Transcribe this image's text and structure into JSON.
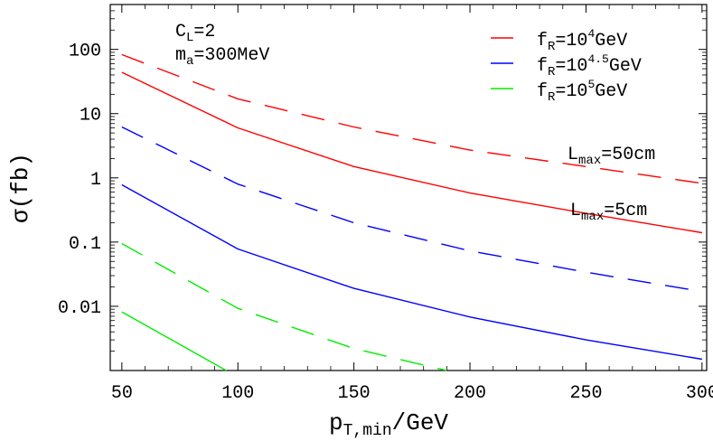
{
  "chart_data": {
    "type": "line",
    "title": "",
    "xlabel_main": "p",
    "xlabel_sub": "T,min",
    "xlabel_rest": "/GeV",
    "ylabel": "σ(fb)",
    "xlim": [
      45,
      302
    ],
    "ylim": [
      0.001,
      500
    ],
    "yscale": "log",
    "x_ticks": [
      50,
      100,
      150,
      200,
      250,
      300
    ],
    "x_tick_labels": [
      "50",
      "100",
      "150",
      "200",
      "250",
      "300"
    ],
    "y_ticks": [
      0.01,
      0.1,
      1,
      10,
      100
    ],
    "y_tick_labels": [
      "0.01",
      "0.1",
      "1",
      "10",
      "100"
    ],
    "grid": false,
    "parameters": {
      "cl_main": "C",
      "cl_sub": "L",
      "cl_value": "=2",
      "ma_main": "m",
      "ma_sub": "a",
      "ma_value": "=300MeV"
    },
    "annotations": [
      {
        "main": "L",
        "sub": "max",
        "value": "=50cm"
      },
      {
        "main": "L",
        "sub": "max",
        "value": "=5cm"
      }
    ],
    "legend": [
      {
        "main": "f",
        "sub": "R",
        "eq": "=10",
        "exp": "4",
        "unit": "GeV",
        "color": "#ff0000"
      },
      {
        "main": "f",
        "sub": "R",
        "eq": "=10",
        "exp": "4.5",
        "unit": "GeV",
        "color": "#0000ff"
      },
      {
        "main": "f",
        "sub": "R",
        "eq": "=10",
        "exp": "5",
        "unit": "GeV",
        "color": "#00ee00"
      }
    ],
    "series": [
      {
        "name": "fR=10^4 GeV, Lmax=50cm",
        "color": "#ff0000",
        "dash": true,
        "x": [
          50,
          100,
          150,
          200,
          250,
          300
        ],
        "values": [
          83,
          17,
          6.2,
          2.7,
          1.5,
          0.82
        ]
      },
      {
        "name": "fR=10^4 GeV, Lmax=5cm",
        "color": "#ff0000",
        "dash": false,
        "x": [
          50,
          100,
          150,
          200,
          250,
          300
        ],
        "values": [
          44,
          6.0,
          1.5,
          0.58,
          0.28,
          0.14
        ]
      },
      {
        "name": "fR=10^4.5 GeV, Lmax=50cm",
        "color": "#0000ff",
        "dash": true,
        "x": [
          50,
          100,
          150,
          200,
          250,
          300
        ],
        "values": [
          6.2,
          0.8,
          0.2,
          0.073,
          0.034,
          0.017
        ]
      },
      {
        "name": "fR=10^4.5 GeV, Lmax=5cm",
        "color": "#0000ff",
        "dash": false,
        "x": [
          50,
          100,
          150,
          200,
          250,
          300
        ],
        "values": [
          0.78,
          0.078,
          0.019,
          0.0068,
          0.003,
          0.0015
        ]
      },
      {
        "name": "fR=10^5 GeV, Lmax=50cm",
        "color": "#00ee00",
        "dash": true,
        "x": [
          50,
          100,
          150,
          190
        ],
        "values": [
          0.095,
          0.0093,
          0.0022,
          0.001
        ]
      },
      {
        "name": "fR=10^5 GeV, Lmax=5cm",
        "color": "#00ee00",
        "dash": false,
        "x": [
          50,
          95
        ],
        "values": [
          0.0082,
          0.001
        ]
      }
    ]
  }
}
